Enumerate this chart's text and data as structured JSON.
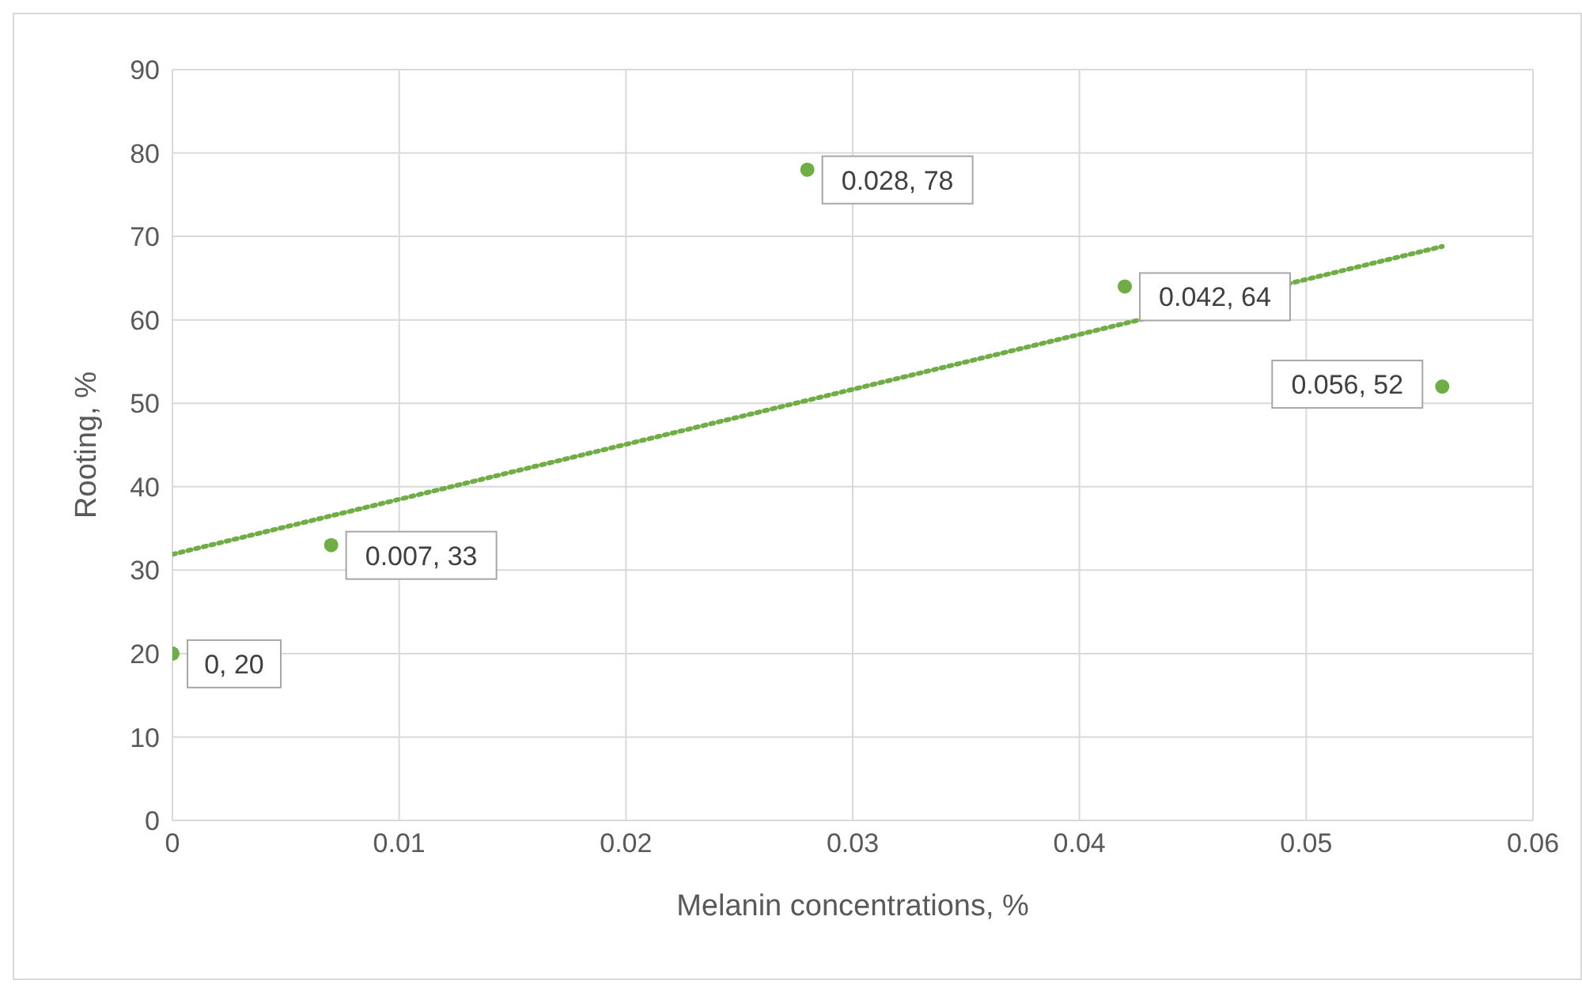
{
  "chart_data": {
    "type": "scatter",
    "xlabel": "Melanin concentrations, %",
    "ylabel": "Rooting, %",
    "xlim": [
      0,
      0.06
    ],
    "xticks": [
      0,
      0.01,
      0.02,
      0.03,
      0.04,
      0.05,
      0.06
    ],
    "ylim": [
      0,
      90
    ],
    "yticks": [
      0,
      10,
      20,
      30,
      40,
      50,
      60,
      70,
      80,
      90
    ],
    "grid": true,
    "legend": false,
    "marker": "circle",
    "series": [
      {
        "type": "scatter",
        "color": "#70ad47",
        "x": [
          0,
          0.007,
          0.028,
          0.042,
          0.056
        ],
        "values": [
          20,
          33,
          78,
          64,
          52
        ],
        "value_labels": [
          "0, 20",
          "0.007, 33",
          "0.028, 78",
          "0.042, 64",
          "0.056, 52"
        ]
      },
      {
        "type": "line",
        "color": "#70ad47",
        "line_style": "dotted",
        "marker": "none",
        "x": [
          0,
          0.056
        ],
        "values": [
          31.9,
          68.8
        ]
      }
    ]
  }
}
